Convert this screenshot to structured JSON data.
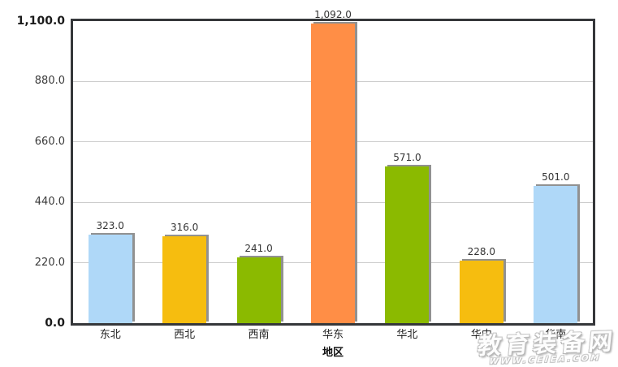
{
  "watermark": {
    "site_name": "教育装备网",
    "site_url": "WWW.CEIEA.COM"
  },
  "chart_data": {
    "type": "bar",
    "title": "",
    "xlabel": "地区",
    "ylabel": "",
    "ylim": [
      0,
      1100
    ],
    "grid": true,
    "legend": false,
    "yticks": [
      {
        "value": 0,
        "label": "0.0",
        "bold": true
      },
      {
        "value": 220,
        "label": "220.0",
        "bold": false
      },
      {
        "value": 440,
        "label": "440.0",
        "bold": false
      },
      {
        "value": 660,
        "label": "660.0",
        "bold": false
      },
      {
        "value": 880,
        "label": "880.0",
        "bold": false
      },
      {
        "value": 1100,
        "label": "1,100.0",
        "bold": true
      }
    ],
    "categories": [
      "东北",
      "西北",
      "西南",
      "华东",
      "华北",
      "华中",
      "华南"
    ],
    "values": [
      323,
      316,
      241,
      1092,
      571,
      228,
      501
    ],
    "value_labels": [
      "323.0",
      "316.0",
      "241.0",
      "1,092.0",
      "571.0",
      "228.0",
      "501.0"
    ],
    "bar_colors": [
      "#AFD8F8",
      "#F6BD0F",
      "#8BBA00",
      "#FF8E46",
      "#8BBA00",
      "#F6BD0F",
      "#AFD8F8"
    ],
    "styling": {
      "plot_border": "#35373a",
      "gridline": "#cccccc",
      "bar_shadow": "#919191",
      "label_color": "#333333",
      "background": "#ffffff"
    }
  }
}
